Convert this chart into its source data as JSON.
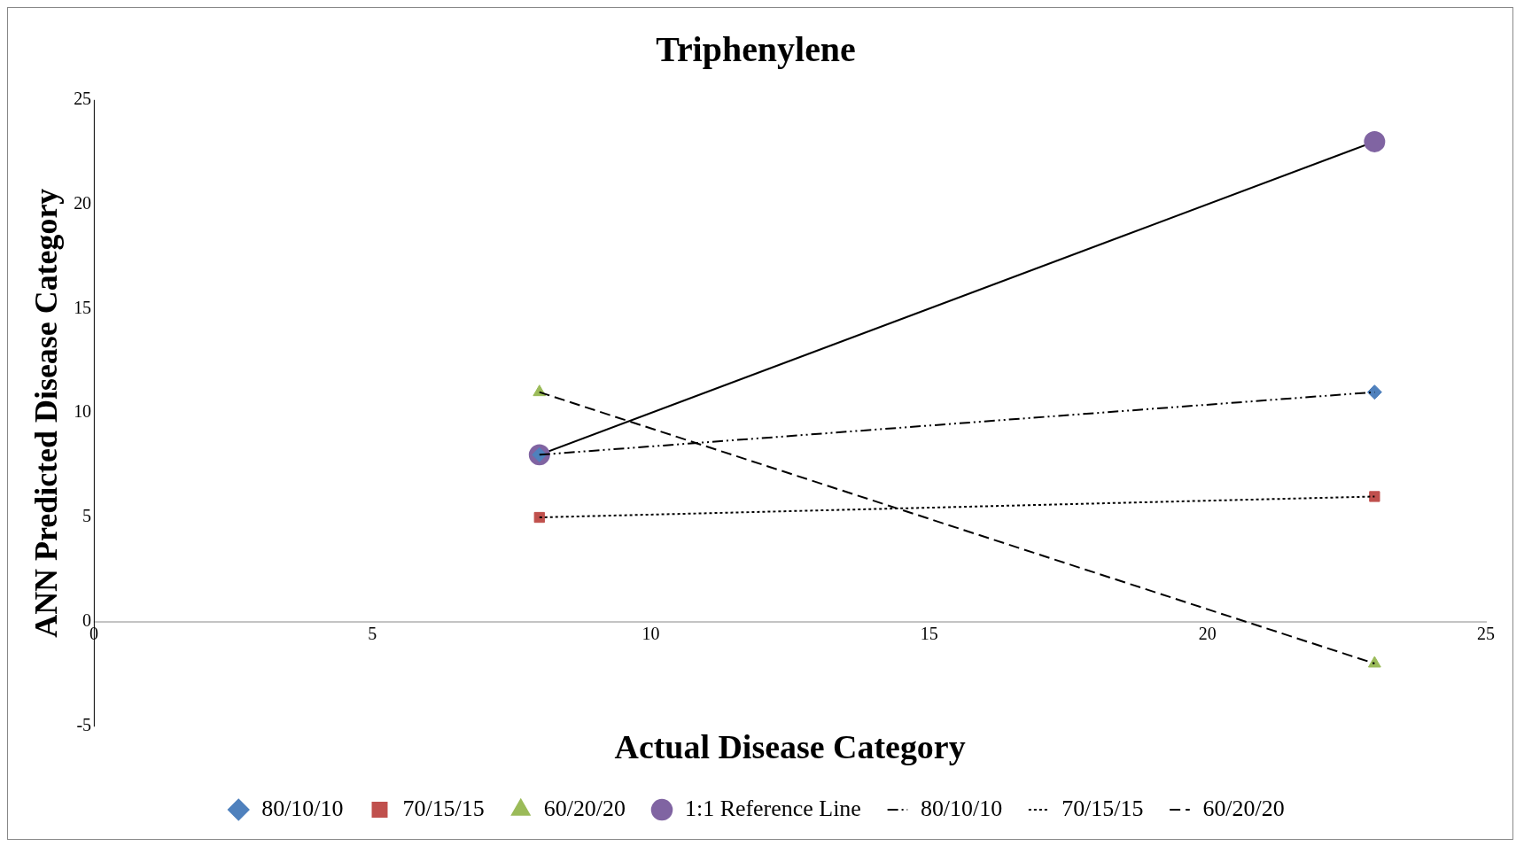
{
  "chart_data": {
    "type": "scatter",
    "title": "Triphenylene",
    "xlabel": "Actual Disease Category",
    "ylabel": "ANN Predicted Disease Category",
    "xlim": [
      0,
      25
    ],
    "xticks": [
      0,
      5,
      10,
      15,
      20,
      25
    ],
    "ylim": [
      -5,
      25
    ],
    "yticks": [
      -5,
      0,
      5,
      10,
      15,
      20,
      25
    ],
    "grid": false,
    "legend": "bottom",
    "x": [
      8,
      23
    ],
    "series": [
      {
        "name": "80/10/10",
        "type": "scatter",
        "marker": "diamond",
        "color": "#4f81bd",
        "values": [
          8,
          11
        ]
      },
      {
        "name": "70/15/15",
        "type": "scatter",
        "marker": "square",
        "color": "#c0504d",
        "values": [
          5,
          6
        ]
      },
      {
        "name": "60/20/20",
        "type": "scatter",
        "marker": "triangle",
        "color": "#9bbb59",
        "values": [
          11,
          -2
        ]
      },
      {
        "name": "1:1 Reference Line",
        "type": "line",
        "marker": "circle",
        "line_style": "solid",
        "color": "#000000",
        "colors": [
          "#8064a2",
          "#8064a2"
        ],
        "values": [
          8,
          23
        ]
      },
      {
        "name": "80/10/10",
        "type": "line",
        "marker": "none",
        "line_style": "dashdot",
        "color": "#000000",
        "values": [
          8,
          11
        ]
      },
      {
        "name": "70/15/15",
        "type": "line",
        "marker": "none",
        "line_style": "dotted",
        "color": "#000000",
        "values": [
          5,
          6
        ]
      },
      {
        "name": "60/20/20",
        "type": "line",
        "marker": "none",
        "line_style": "dashed",
        "color": "#000000",
        "values": [
          11,
          -2
        ]
      }
    ]
  }
}
